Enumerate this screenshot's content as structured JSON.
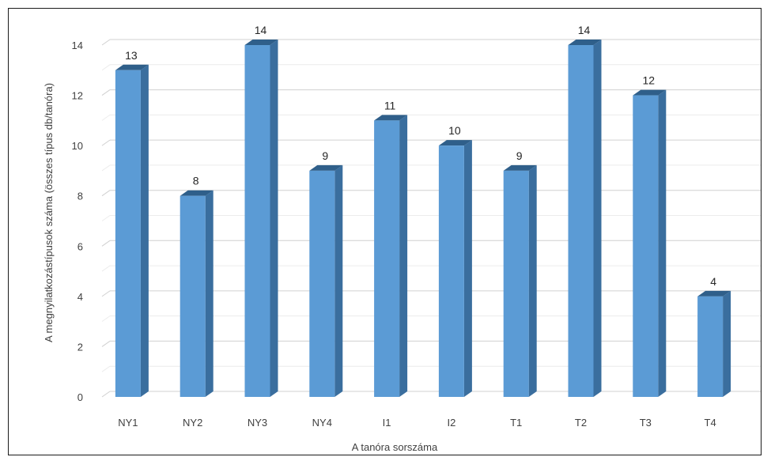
{
  "chart_data": {
    "type": "bar",
    "style": "3d-column",
    "title": "",
    "xlabel": "A tanóra sorszáma",
    "ylabel": "A megnyilatkozástípusok száma (összes típus db/tanóra)",
    "categories": [
      "NY1",
      "NY2",
      "NY3",
      "NY4",
      "I1",
      "I2",
      "T1",
      "T2",
      "T3",
      "T4"
    ],
    "values": [
      13,
      8,
      14,
      9,
      11,
      10,
      9,
      14,
      12,
      4
    ],
    "data_labels": [
      "13",
      "8",
      "14",
      "9",
      "11",
      "10",
      "9",
      "14",
      "12",
      "4"
    ],
    "ylim": [
      0,
      14
    ],
    "yticks": [
      "0",
      "2",
      "4",
      "6",
      "8",
      "10",
      "12",
      "14"
    ],
    "grid": true,
    "legend": "none",
    "colors": {
      "bar_front": "#5b9bd5",
      "bar_side": "#3a6e9e",
      "bar_top": "#2f5f8a",
      "grid": "#d9d9d9"
    }
  }
}
